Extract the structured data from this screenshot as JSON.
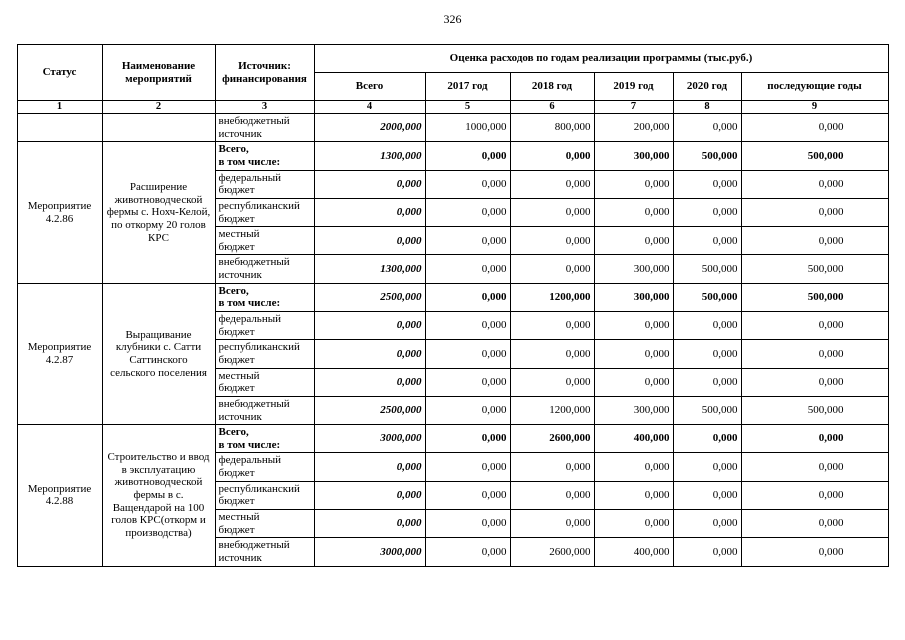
{
  "page_number": "326",
  "table": {
    "header": {
      "status": "Статус",
      "name": "Наименование\nмероприятий",
      "source": "Источник:\nфинансирования",
      "costs_title": "Оценка расходов по годам реализации программы (тыс.руб.)",
      "year_cols": [
        "Всего",
        "2017 год",
        "2018 год",
        "2019 год",
        "2020 год",
        "последующие годы"
      ],
      "col_numbers": [
        "1",
        "2",
        "3",
        "4",
        "5",
        "6",
        "7",
        "8",
        "9"
      ]
    },
    "groups": [
      {
        "status": "",
        "name": "",
        "rows": [
          {
            "source": "внебюджетный\nисточник",
            "total": false,
            "values": [
              "2000,000",
              "1000,000",
              "800,000",
              "200,000",
              "0,000",
              "0,000"
            ]
          }
        ]
      },
      {
        "status": "Мероприятие 4.2.86",
        "name": "Расширение животноводческой фермы с. Нохч-Келой, по откорму 20 голов КРС",
        "rows": [
          {
            "source": "Всего,\nв том числе:",
            "total": true,
            "values": [
              "1300,000",
              "0,000",
              "0,000",
              "300,000",
              "500,000",
              "500,000"
            ]
          },
          {
            "source": "федеральный\nбюджет",
            "total": false,
            "values": [
              "0,000",
              "0,000",
              "0,000",
              "0,000",
              "0,000",
              "0,000"
            ]
          },
          {
            "source": "республиканский\nбюджет",
            "total": false,
            "values": [
              "0,000",
              "0,000",
              "0,000",
              "0,000",
              "0,000",
              "0,000"
            ]
          },
          {
            "source": "местный\nбюджет",
            "total": false,
            "values": [
              "0,000",
              "0,000",
              "0,000",
              "0,000",
              "0,000",
              "0,000"
            ]
          },
          {
            "source": "внебюджетный\nисточник",
            "total": false,
            "values": [
              "1300,000",
              "0,000",
              "0,000",
              "300,000",
              "500,000",
              "500,000"
            ]
          }
        ]
      },
      {
        "status": "Мероприятие 4.2.87",
        "name": "Выращивание клубники с. Сатти Саттинского сельского поселения",
        "rows": [
          {
            "source": "Всего,\nв том числе:",
            "total": true,
            "values": [
              "2500,000",
              "0,000",
              "1200,000",
              "300,000",
              "500,000",
              "500,000"
            ]
          },
          {
            "source": "федеральный\nбюджет",
            "total": false,
            "values": [
              "0,000",
              "0,000",
              "0,000",
              "0,000",
              "0,000",
              "0,000"
            ]
          },
          {
            "source": "республиканский\nбюджет",
            "total": false,
            "values": [
              "0,000",
              "0,000",
              "0,000",
              "0,000",
              "0,000",
              "0,000"
            ]
          },
          {
            "source": "местный\nбюджет",
            "total": false,
            "values": [
              "0,000",
              "0,000",
              "0,000",
              "0,000",
              "0,000",
              "0,000"
            ]
          },
          {
            "source": "внебюджетный\nисточник",
            "total": false,
            "values": [
              "2500,000",
              "0,000",
              "1200,000",
              "300,000",
              "500,000",
              "500,000"
            ]
          }
        ]
      },
      {
        "status": "Мероприятие 4.2.88",
        "name": "Строительство и ввод в эксплуатацию животноводческой фермы в  с. Ващендарой на 100 голов КРС(откорм и производства)",
        "rows": [
          {
            "source": "Всего,\nв том числе:",
            "total": true,
            "values": [
              "3000,000",
              "0,000",
              "2600,000",
              "400,000",
              "0,000",
              "0,000"
            ]
          },
          {
            "source": "федеральный\nбюджет",
            "total": false,
            "values": [
              "0,000",
              "0,000",
              "0,000",
              "0,000",
              "0,000",
              "0,000"
            ]
          },
          {
            "source": "республиканский\nбюджет",
            "total": false,
            "values": [
              "0,000",
              "0,000",
              "0,000",
              "0,000",
              "0,000",
              "0,000"
            ]
          },
          {
            "source": "местный\nбюджет",
            "total": false,
            "values": [
              "0,000",
              "0,000",
              "0,000",
              "0,000",
              "0,000",
              "0,000"
            ]
          },
          {
            "source": "внебюджетный\nисточник",
            "total": false,
            "values": [
              "3000,000",
              "0,000",
              "2600,000",
              "400,000",
              "0,000",
              "0,000"
            ]
          }
        ]
      }
    ]
  }
}
